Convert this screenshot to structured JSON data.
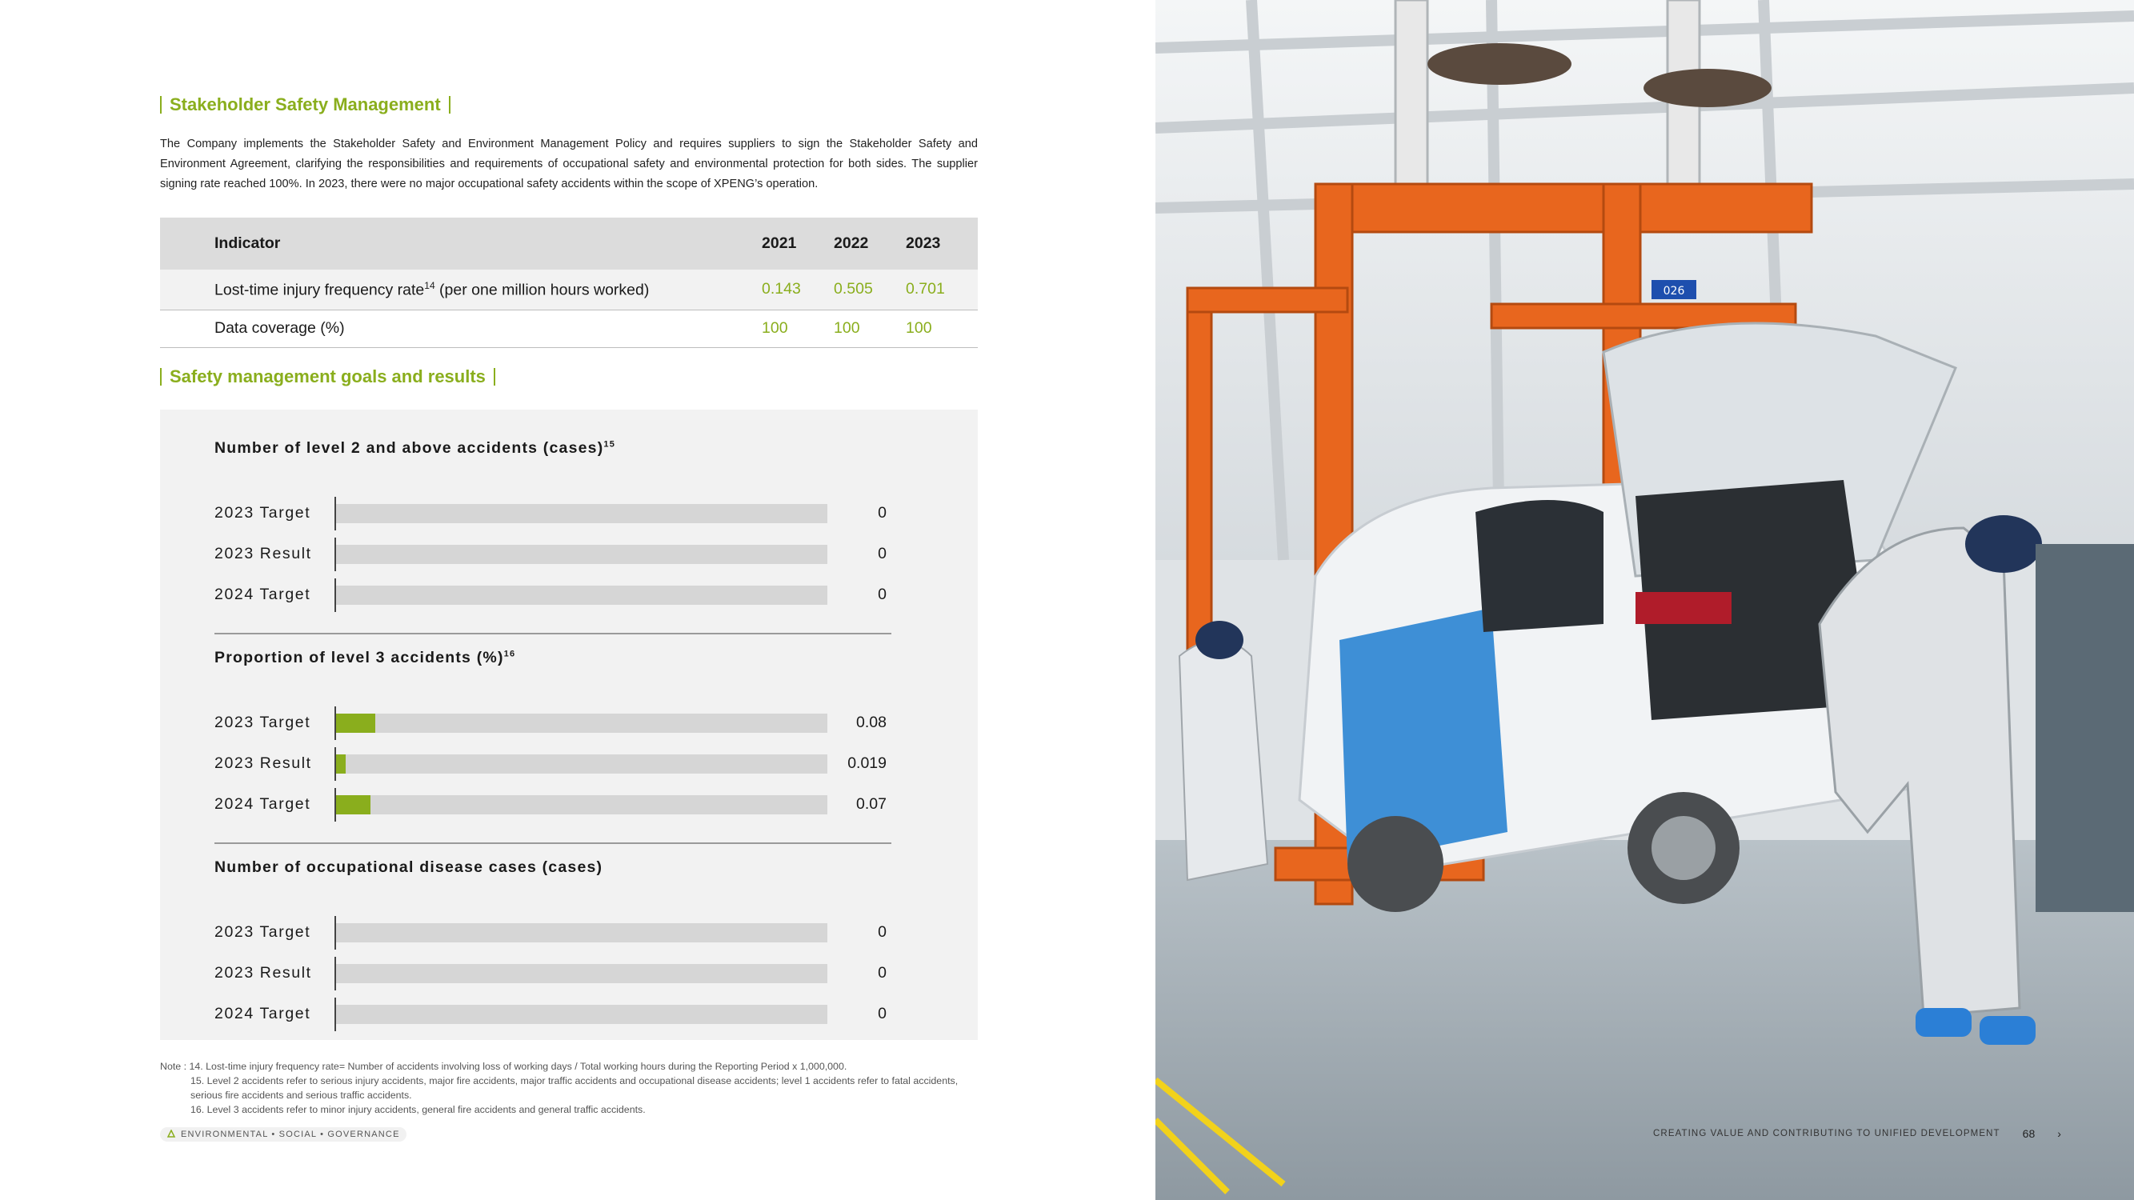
{
  "section1": {
    "title": "Stakeholder Safety Management",
    "intro": "The Company implements the Stakeholder Safety and Environment Management Policy and requires suppliers to sign the Stakeholder Safety and Environment Agreement, clarifying the responsibilities and requirements of occupational safety and environmental protection for both sides. The supplier signing rate reached 100%. In 2023, there were no major occupational safety accidents within the scope of XPENG’s operation."
  },
  "indicator_table": {
    "headers": [
      "Indicator",
      "2021",
      "2022",
      "2023"
    ],
    "rows": [
      {
        "label": "Lost-time injury frequency rate",
        "sup": "14",
        "label_suffix": " (per one million hours worked)",
        "values": [
          "0.143",
          "0.505",
          "0.701"
        ]
      },
      {
        "label": "Data coverage (%)",
        "values": [
          "100",
          "100",
          "100"
        ]
      }
    ]
  },
  "section2": {
    "title": "Safety management goals and results"
  },
  "chart_data": [
    {
      "type": "bar",
      "title": "Number of level 2 and above accidents (cases)",
      "title_sup": "15",
      "categories": [
        "2023 Target",
        "2023 Result",
        "2024 Target"
      ],
      "values": [
        0,
        0,
        0
      ],
      "value_labels": [
        "0",
        "0",
        "0"
      ]
    },
    {
      "type": "bar",
      "title": "Proportion of level 3 accidents (%)",
      "title_sup": "16",
      "categories": [
        "2023 Target",
        "2023 Result",
        "2024 Target"
      ],
      "values": [
        0.08,
        0.019,
        0.07
      ],
      "value_labels": [
        "0.08",
        "0.019",
        "0.07"
      ]
    },
    {
      "type": "bar",
      "title": "Number of occupational disease cases (cases)",
      "categories": [
        "2023 Target",
        "2023 Result",
        "2024 Target"
      ],
      "values": [
        0,
        0,
        0
      ],
      "value_labels": [
        "0",
        "0",
        "0"
      ]
    }
  ],
  "notes": {
    "lead": "Note : 14. Lost-time injury frequency rate= Number of accidents involving loss of working days / Total working hours during the Reporting Period x 1,000,000.",
    "items": [
      "15. Level 2 accidents refer to serious injury accidents, major fire accidents, major traffic accidents and occupational disease accidents; level 1 accidents refer to fatal accidents, serious fire accidents and serious traffic accidents.",
      "16.  Level 3 accidents refer to minor injury accidents, general fire accidents and general traffic accidents."
    ]
  },
  "footer": {
    "left": "ENVIRONMENTAL • SOCIAL • GOVERNANCE",
    "right": "CREATING VALUE AND CONTRIBUTING TO UNIFIED DEVELOPMENT",
    "page": "68",
    "chevron": "›"
  },
  "photo": {
    "sign_text": "026"
  },
  "colors": {
    "accent": "#8aae1d",
    "bar_track": "#d6d6d6",
    "panel": "#f2f2f2",
    "header": "#dcdcdc"
  }
}
